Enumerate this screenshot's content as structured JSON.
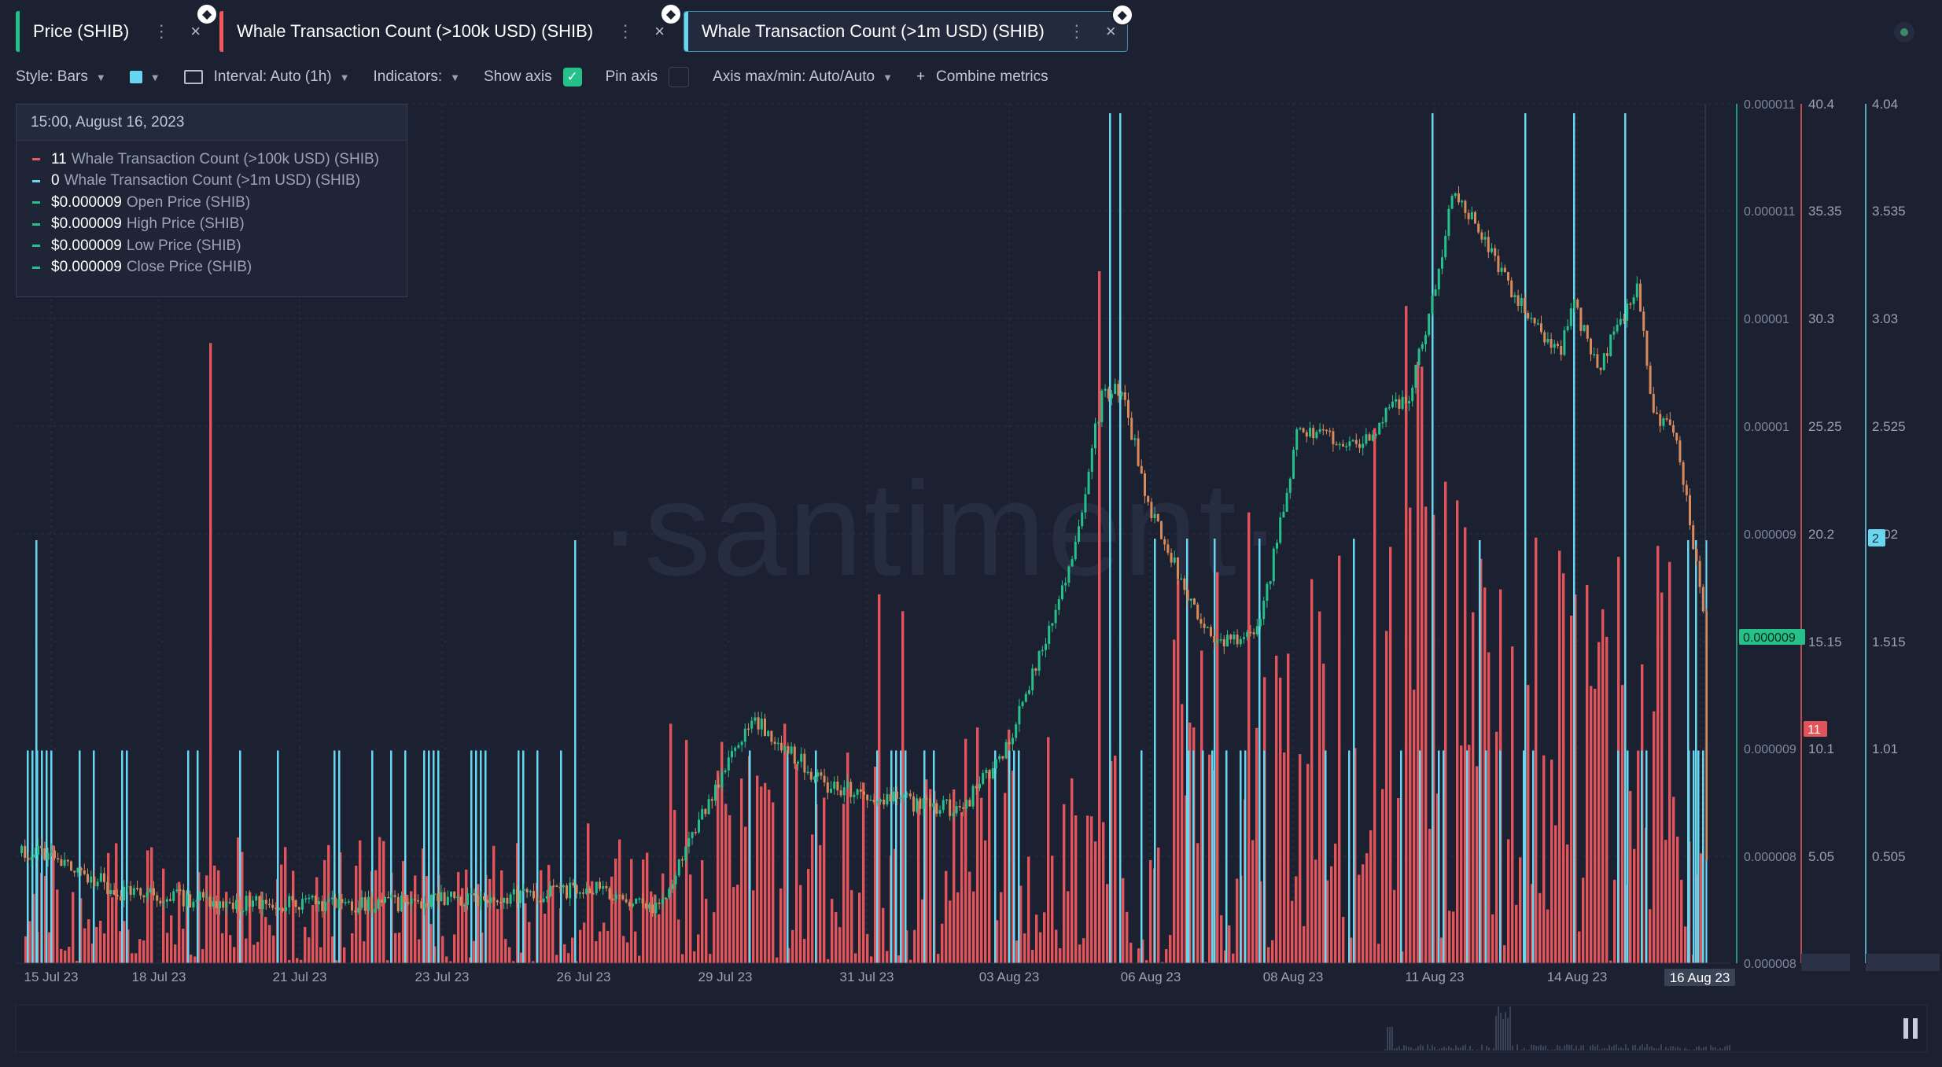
{
  "tabs": [
    {
      "label": "Price (SHIB)",
      "color": "#26c08a",
      "active": false
    },
    {
      "label": "Whale Transaction Count (>100k USD) (SHIB)",
      "color": "#f05a5e",
      "active": false
    },
    {
      "label": "Whale Transaction Count (>1m USD) (SHIB)",
      "color": "#68d6ef",
      "active": true
    }
  ],
  "toolbar": {
    "style_label": "Style: Bars",
    "interval_label": "Interval: Auto (1h)",
    "indicators_label": "Indicators:",
    "show_axis_label": "Show axis",
    "show_axis_checked": true,
    "pin_axis_label": "Pin axis",
    "pin_axis_checked": false,
    "axis_maxmin_label": "Axis max/min: Auto/Auto",
    "combine_label": "Combine metrics",
    "combine_plus": "+",
    "swatch_color": "#68d6ef"
  },
  "tooltip": {
    "date": "15:00, August 16, 2023",
    "rows": [
      {
        "value": "11",
        "label": "Whale Transaction Count (>100k USD) (SHIB)",
        "color": "#f05a5e"
      },
      {
        "value": "0",
        "label": "Whale Transaction Count (>1m USD) (SHIB)",
        "color": "#68d6ef"
      },
      {
        "value": "$0.000009",
        "label": "Open Price (SHIB)",
        "color": "#26c08a"
      },
      {
        "value": "$0.000009",
        "label": "High Price (SHIB)",
        "color": "#26c08a"
      },
      {
        "value": "$0.000009",
        "label": "Low Price (SHIB)",
        "color": "#26c08a"
      },
      {
        "value": "$0.000009",
        "label": "Close Price (SHIB)",
        "color": "#26c08a"
      }
    ]
  },
  "watermark": "·santiment·",
  "axes": {
    "price": [
      "0.000011",
      "0.000011",
      "0.00001",
      "0.00001",
      "0.000009",
      "0.000009",
      "0.000008",
      "0.000008"
    ],
    "whale100k": [
      "40.4",
      "35.35",
      "30.3",
      "25.25",
      "20.2",
      "15.15",
      "10.1",
      "5.05",
      "0.06"
    ],
    "whale1m": [
      "4.04",
      "3.535",
      "3.03",
      "2.525",
      "2.02",
      "1.515",
      "1.01",
      "0.505",
      "0.006012"
    ],
    "price_badge": "0.000009",
    "whale100k_badge": "11",
    "whale1m_badge": "2"
  },
  "chart_data": {
    "type": "bar",
    "x_labels": [
      "15 Jul 23",
      "18 Jul 23",
      "21 Jul 23",
      "23 Jul 23",
      "26 Jul 23",
      "29 Jul 23",
      "31 Jul 23",
      "03 Aug 23",
      "06 Aug 23",
      "08 Aug 23",
      "11 Aug 23",
      "14 Aug 23",
      "16 Aug 23"
    ],
    "hover_label": "16 Aug 23",
    "series": [
      {
        "name": "Price (SHIB)",
        "type": "candlestick",
        "up_color": "#26c08a",
        "down_color": "#d98a5a",
        "keypoints_date": [
          "15 Jul 23",
          "18 Jul 23",
          "21 Jul 23",
          "23 Jul 23",
          "26 Jul 23",
          "29 Jul 23",
          "31 Jul 23",
          "03 Aug 23",
          "06 Aug 23",
          "08 Aug 23",
          "11 Aug 23",
          "14 Aug 23",
          "16 Aug 23"
        ],
        "keypoints_price": [
          8.2e-06,
          8.1e-06,
          8.1e-06,
          8.1e-06,
          8.1e-06,
          8.7e-06,
          8.5e-06,
          8.7e-06,
          9.4e-06,
          9.7e-06,
          1.06e-05,
          1.01e-05,
          9e-06
        ]
      },
      {
        "name": "Whale Transaction Count (>100k USD) (SHIB)",
        "type": "bar",
        "color": "#f05a5e",
        "max": 40.4
      },
      {
        "name": "Whale Transaction Count (>1m USD) (SHIB)",
        "type": "bar",
        "color": "#68d6ef",
        "max": 4.04
      }
    ]
  }
}
